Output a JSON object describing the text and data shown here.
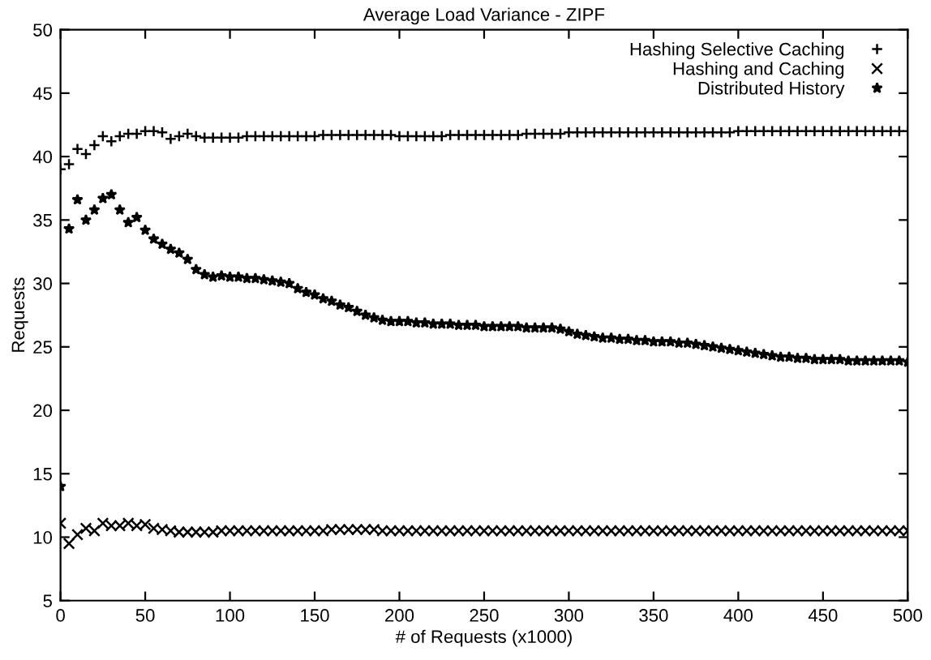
{
  "chart_data": {
    "type": "scatter",
    "title": "Average Load Variance - ZIPF",
    "xlabel": "# of Requests (x1000)",
    "ylabel": "Requests",
    "x": [
      0,
      5,
      10,
      15,
      20,
      25,
      30,
      35,
      40,
      45,
      50,
      55,
      60,
      65,
      70,
      75,
      80,
      85,
      90,
      95,
      100,
      105,
      110,
      115,
      120,
      125,
      130,
      135,
      140,
      145,
      150,
      155,
      160,
      165,
      170,
      175,
      180,
      185,
      190,
      195,
      200,
      205,
      210,
      215,
      220,
      225,
      230,
      235,
      240,
      245,
      250,
      255,
      260,
      265,
      270,
      275,
      280,
      285,
      290,
      295,
      300,
      305,
      310,
      315,
      320,
      325,
      330,
      335,
      340,
      345,
      350,
      355,
      360,
      365,
      370,
      375,
      380,
      385,
      390,
      395,
      400,
      405,
      410,
      415,
      420,
      425,
      430,
      435,
      440,
      445,
      450,
      455,
      460,
      465,
      470,
      475,
      480,
      485,
      490,
      495,
      500
    ],
    "series": [
      {
        "name": "Hashing Selective Caching",
        "color": "#000000",
        "marker": "plus",
        "values": [
          39.0,
          39.4,
          40.6,
          40.2,
          40.9,
          41.6,
          41.2,
          41.6,
          41.8,
          41.8,
          42.0,
          42.0,
          41.9,
          41.4,
          41.6,
          41.8,
          41.6,
          41.5,
          41.5,
          41.5,
          41.5,
          41.5,
          41.6,
          41.6,
          41.6,
          41.6,
          41.6,
          41.6,
          41.6,
          41.6,
          41.6,
          41.7,
          41.7,
          41.7,
          41.7,
          41.7,
          41.7,
          41.7,
          41.7,
          41.7,
          41.6,
          41.6,
          41.6,
          41.6,
          41.6,
          41.6,
          41.7,
          41.7,
          41.7,
          41.7,
          41.7,
          41.7,
          41.7,
          41.7,
          41.7,
          41.8,
          41.8,
          41.8,
          41.8,
          41.8,
          41.9,
          41.9,
          41.9,
          41.9,
          41.9,
          41.9,
          41.9,
          41.9,
          41.9,
          41.9,
          41.9,
          41.9,
          41.9,
          41.9,
          41.9,
          41.9,
          41.9,
          41.9,
          41.9,
          41.9,
          42.0,
          42.0,
          42.0,
          42.0,
          42.0,
          42.0,
          42.0,
          42.0,
          42.0,
          42.0,
          42.0,
          42.0,
          42.0,
          42.0,
          42.0,
          42.0,
          42.0,
          42.0,
          42.0,
          42.0,
          42.0
        ]
      },
      {
        "name": "Hashing and Caching",
        "color": "#000000",
        "marker": "cross",
        "values": [
          11.1,
          9.5,
          10.2,
          10.7,
          10.5,
          11.1,
          10.9,
          10.9,
          11.1,
          10.9,
          11.0,
          10.7,
          10.6,
          10.5,
          10.4,
          10.4,
          10.4,
          10.4,
          10.4,
          10.5,
          10.5,
          10.5,
          10.5,
          10.5,
          10.5,
          10.5,
          10.5,
          10.5,
          10.5,
          10.5,
          10.5,
          10.5,
          10.6,
          10.6,
          10.6,
          10.6,
          10.6,
          10.6,
          10.5,
          10.5,
          10.5,
          10.5,
          10.5,
          10.5,
          10.5,
          10.5,
          10.5,
          10.5,
          10.5,
          10.5,
          10.5,
          10.5,
          10.5,
          10.5,
          10.5,
          10.5,
          10.5,
          10.5,
          10.5,
          10.5,
          10.5,
          10.5,
          10.5,
          10.5,
          10.5,
          10.5,
          10.5,
          10.5,
          10.5,
          10.5,
          10.5,
          10.5,
          10.5,
          10.5,
          10.5,
          10.5,
          10.5,
          10.5,
          10.5,
          10.5,
          10.5,
          10.5,
          10.5,
          10.5,
          10.5,
          10.5,
          10.5,
          10.5,
          10.5,
          10.5,
          10.5,
          10.5,
          10.5,
          10.5,
          10.5,
          10.5,
          10.5,
          10.5,
          10.5,
          10.5,
          10.5
        ]
      },
      {
        "name": "Distributed History",
        "color": "#000000",
        "marker": "star",
        "values": [
          14.0,
          34.3,
          36.6,
          35.0,
          35.8,
          36.7,
          37.0,
          35.8,
          34.8,
          35.2,
          34.2,
          33.5,
          33.1,
          32.7,
          32.4,
          31.9,
          31.1,
          30.7,
          30.5,
          30.6,
          30.5,
          30.5,
          30.4,
          30.4,
          30.3,
          30.2,
          30.1,
          30.0,
          29.6,
          29.3,
          29.1,
          28.8,
          28.6,
          28.3,
          28.1,
          27.8,
          27.5,
          27.3,
          27.1,
          27.0,
          27.0,
          27.0,
          26.9,
          26.9,
          26.8,
          26.8,
          26.8,
          26.7,
          26.7,
          26.7,
          26.6,
          26.6,
          26.6,
          26.6,
          26.6,
          26.5,
          26.5,
          26.5,
          26.5,
          26.4,
          26.2,
          26.0,
          25.9,
          25.8,
          25.7,
          25.7,
          25.6,
          25.6,
          25.5,
          25.5,
          25.4,
          25.4,
          25.4,
          25.3,
          25.3,
          25.2,
          25.1,
          25.0,
          24.9,
          24.8,
          24.7,
          24.6,
          24.5,
          24.4,
          24.3,
          24.2,
          24.2,
          24.1,
          24.1,
          24.0,
          24.0,
          24.0,
          24.0,
          23.9,
          23.9,
          23.9,
          23.9,
          23.9,
          23.9,
          23.9,
          23.8
        ]
      }
    ],
    "xlim": [
      0,
      500
    ],
    "ylim": [
      5,
      50
    ],
    "xticks": [
      0,
      50,
      100,
      150,
      200,
      250,
      300,
      350,
      400,
      450,
      500
    ],
    "yticks": [
      5,
      10,
      15,
      20,
      25,
      30,
      35,
      40,
      45,
      50
    ],
    "grid": false,
    "legend": "top right"
  }
}
